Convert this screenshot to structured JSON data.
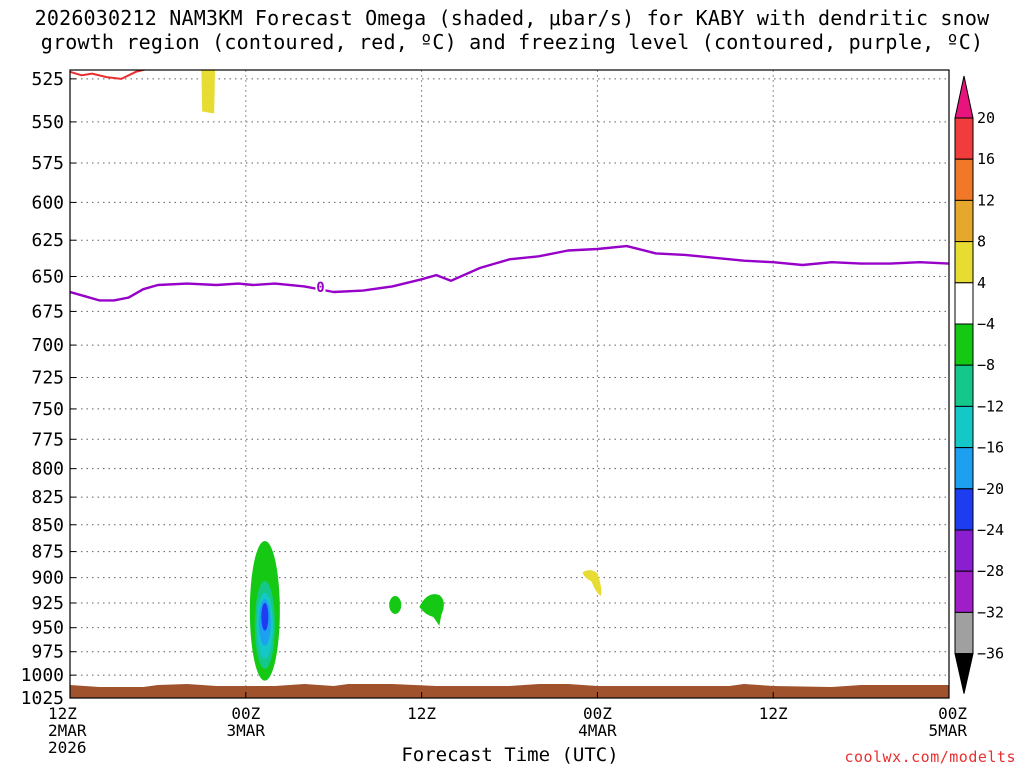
{
  "title_line1": "2026030212 NAM3KM Forecast Omega (shaded, μbar/s) for KABY with dendritic snow",
  "title_line2": "growth region (contoured, red, ºC) and freezing level (contoured, purple, ºC)",
  "credit": "coolwx.com/modelts",
  "chart_data": {
    "type": "heatmap",
    "xlabel": "Forecast Time (UTC)",
    "ylabel": "",
    "x_range_hours": [
      0,
      60
    ],
    "x_ticks": [
      {
        "hour": 0,
        "lines": [
          "12Z",
          "2MAR",
          "2026"
        ]
      },
      {
        "hour": 12,
        "lines": [
          "00Z",
          "3MAR"
        ]
      },
      {
        "hour": 24,
        "lines": [
          "12Z"
        ]
      },
      {
        "hour": 36,
        "lines": [
          "00Z",
          "4MAR"
        ]
      },
      {
        "hour": 48,
        "lines": [
          "12Z"
        ]
      },
      {
        "hour": 60,
        "lines": [
          "00Z",
          "5MAR"
        ]
      }
    ],
    "y_axis_pressure_hpa": [
      1025,
      1000,
      975,
      950,
      925,
      900,
      875,
      850,
      825,
      800,
      775,
      750,
      725,
      700,
      675,
      650,
      625,
      600,
      575,
      550,
      525
    ],
    "y_range": [
      1025,
      520
    ],
    "grid": true,
    "colorbar": {
      "labels": [
        "20",
        "16",
        "12",
        "8",
        "4",
        "−4",
        "−8",
        "−12",
        "−16",
        "−20",
        "−24",
        "−28",
        "−32",
        "−36"
      ],
      "bands": [
        {
          "range": [
            16,
            20
          ],
          "color": "#f03c3c"
        },
        {
          "range": [
            12,
            16
          ],
          "color": "#f07828"
        },
        {
          "range": [
            8,
            12
          ],
          "color": "#e6a82c"
        },
        {
          "range": [
            4,
            8
          ],
          "color": "#e6dc32"
        },
        {
          "range": [
            -4,
            4
          ],
          "color": "#ffffff"
        },
        {
          "range": [
            -8,
            -4
          ],
          "color": "#14c814"
        },
        {
          "range": [
            -12,
            -8
          ],
          "color": "#14c88c"
        },
        {
          "range": [
            -16,
            -12
          ],
          "color": "#14c8c8"
        },
        {
          "range": [
            -20,
            -16
          ],
          "color": "#1ea0f0"
        },
        {
          "range": [
            -24,
            -20
          ],
          "color": "#1e3cf0"
        },
        {
          "range": [
            -28,
            -24
          ],
          "color": "#8c1ed2"
        },
        {
          "range": [
            -32,
            -28
          ],
          "color": "#a01ec8"
        },
        {
          "range": [
            -36,
            -32
          ],
          "color": "#a0a0a0"
        }
      ],
      "over_color": "#e6147c",
      "under_color": "#000000"
    },
    "freezing_level": {
      "label": "0",
      "color": "#9600c8",
      "points": [
        [
          0,
          661
        ],
        [
          1,
          664
        ],
        [
          2,
          667
        ],
        [
          3,
          667
        ],
        [
          4,
          665
        ],
        [
          5,
          659
        ],
        [
          6,
          656
        ],
        [
          8,
          655
        ],
        [
          10,
          656
        ],
        [
          11.5,
          655
        ],
        [
          12.5,
          656
        ],
        [
          14,
          655
        ],
        [
          16,
          657
        ],
        [
          18,
          661
        ],
        [
          20,
          660
        ],
        [
          22,
          657
        ],
        [
          24,
          652
        ],
        [
          25,
          649
        ],
        [
          26,
          653
        ],
        [
          28,
          644
        ],
        [
          30,
          638
        ],
        [
          32,
          636
        ],
        [
          34,
          632
        ],
        [
          36,
          631
        ],
        [
          38,
          629
        ],
        [
          40,
          634
        ],
        [
          42,
          635
        ],
        [
          44,
          637
        ],
        [
          46,
          639
        ],
        [
          48,
          640
        ],
        [
          50,
          642
        ],
        [
          52,
          640
        ],
        [
          54,
          641
        ],
        [
          56,
          641
        ],
        [
          58,
          640
        ],
        [
          60,
          641
        ]
      ]
    },
    "dendritic_growth_region": {
      "color": "#e83030",
      "points": [
        [
          0,
          521
        ],
        [
          0.8,
          523
        ],
        [
          1.5,
          522
        ],
        [
          2.5,
          524
        ],
        [
          3.5,
          525
        ],
        [
          4.5,
          521
        ],
        [
          5.5,
          519
        ]
      ]
    },
    "omega_features": [
      {
        "center_hour": 13.3,
        "pressure_range": [
          865,
          1006
        ],
        "min_value": -24
      },
      {
        "center_hour": 9.5,
        "pressure_range": [
          515,
          545
        ],
        "max_value": 6
      },
      {
        "center_hour": 22.2,
        "pressure_range": [
          918,
          936
        ],
        "min_value": -6
      },
      {
        "center_hour": 24.8,
        "pressure_range": [
          915,
          948
        ],
        "min_value": -6
      },
      {
        "center_hour": 35.8,
        "pressure_range": [
          892,
          918
        ],
        "max_value": 6
      }
    ],
    "terrain_color": "#a0522d"
  }
}
